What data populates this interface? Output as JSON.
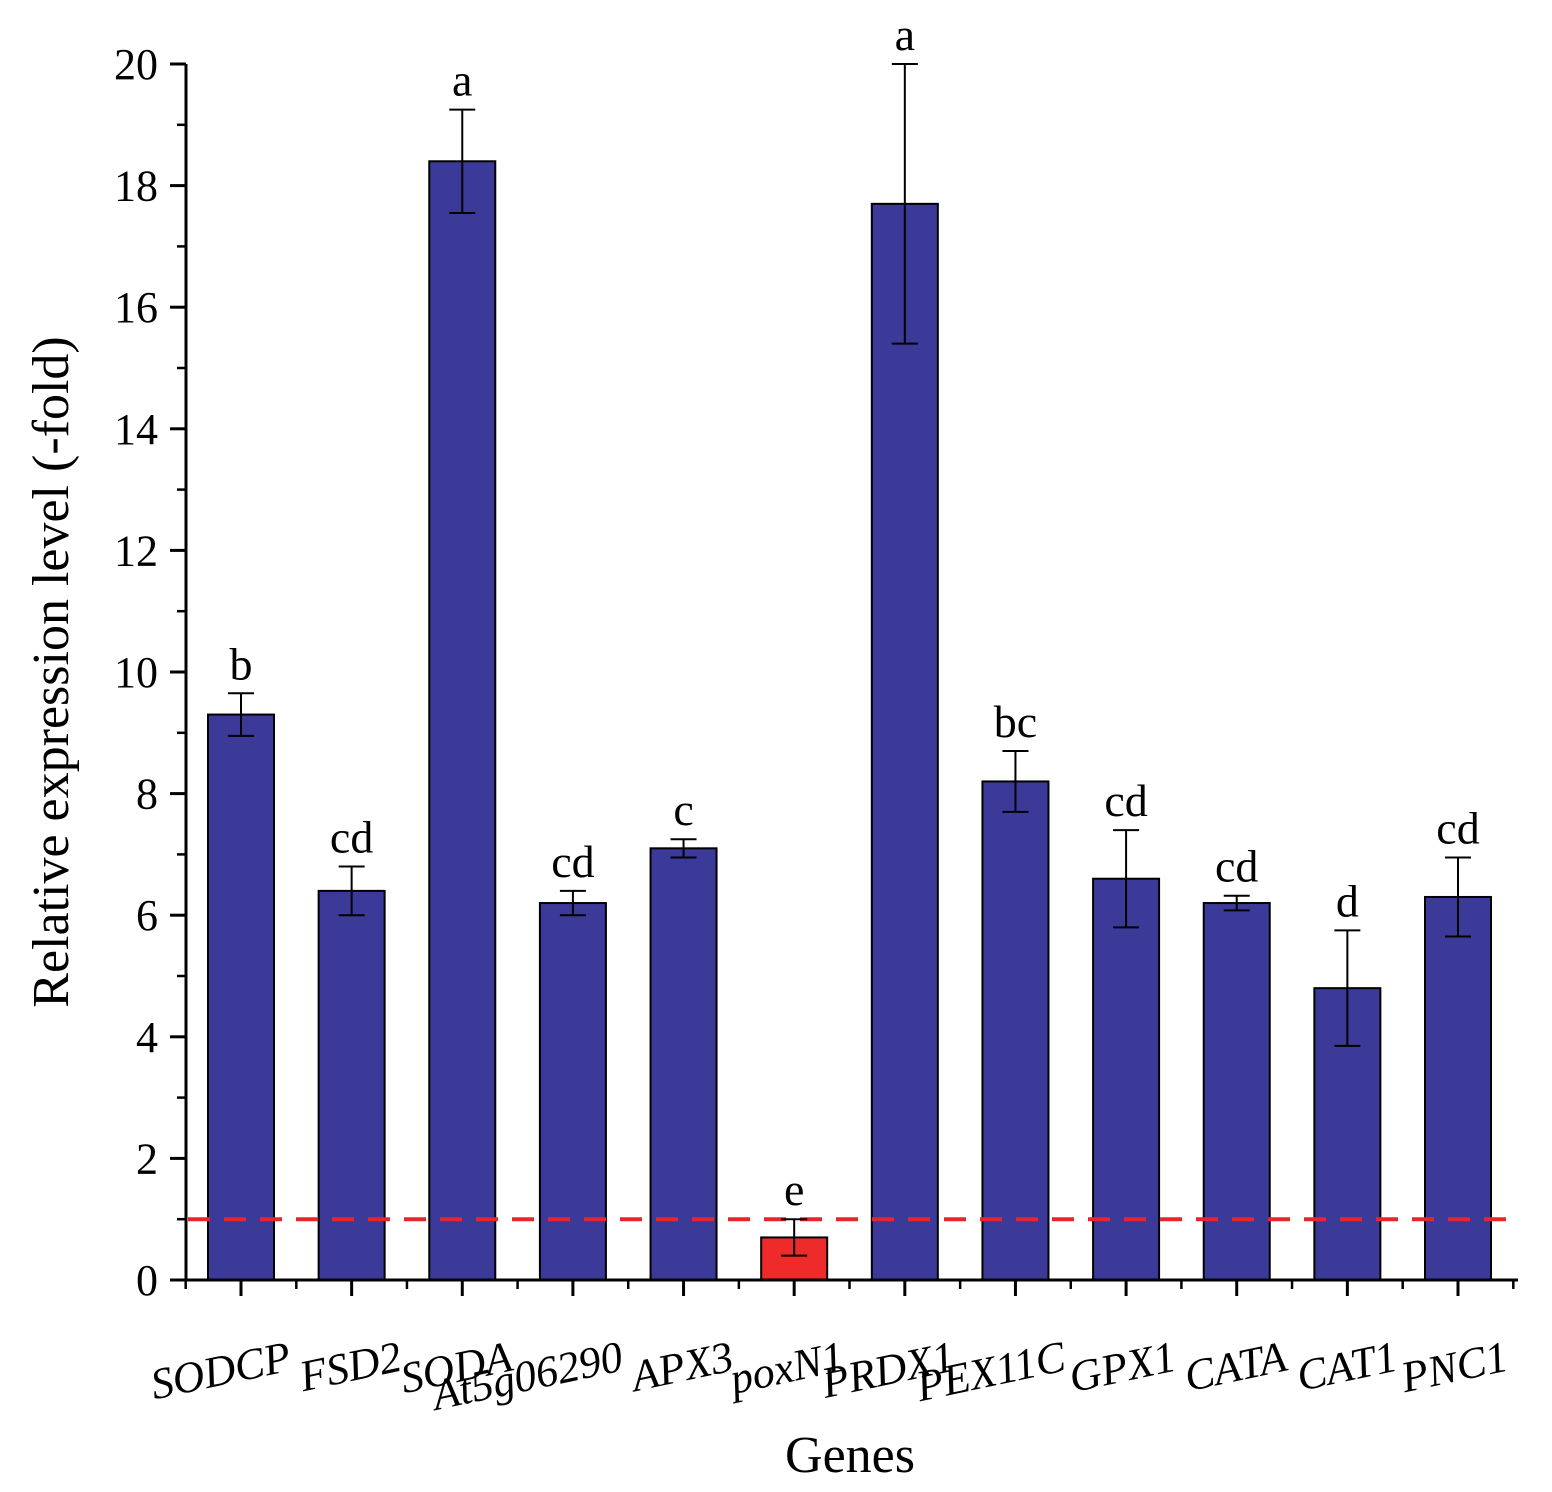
{
  "chart_data": {
    "type": "bar",
    "title": "",
    "xlabel": "Genes",
    "ylabel": "Relative expression level (-fold)",
    "ylim": [
      0,
      20
    ],
    "yticks": [
      0,
      2,
      4,
      6,
      8,
      10,
      12,
      14,
      16,
      18,
      20
    ],
    "grid": false,
    "reference_line": {
      "y": 1,
      "color": "#e8252a",
      "style": "dashed"
    },
    "categories": [
      "SODCP",
      "FSD2",
      "SODA",
      "At5g06290",
      "APX3",
      "poxN1",
      "PRDX1",
      "PEX11C",
      "GPX1",
      "CATA",
      "CAT1",
      "PNC1"
    ],
    "values": [
      9.3,
      6.4,
      18.4,
      6.2,
      7.1,
      0.7,
      17.7,
      8.2,
      6.6,
      6.2,
      4.8,
      6.3
    ],
    "errors": [
      0.35,
      0.4,
      0.85,
      0.2,
      0.15,
      0.3,
      2.3,
      0.5,
      0.8,
      0.12,
      0.95,
      0.65
    ],
    "significance": [
      "b",
      "cd",
      "a",
      "cd",
      "c",
      "e",
      "a",
      "bc",
      "cd",
      "cd",
      "d",
      "cd"
    ],
    "colors": [
      "#3b3a99",
      "#3b3a99",
      "#3b3a99",
      "#3b3a99",
      "#3b3a99",
      "#ee2a2a",
      "#3b3a99",
      "#3b3a99",
      "#3b3a99",
      "#3b3a99",
      "#3b3a99",
      "#3b3a99"
    ]
  }
}
